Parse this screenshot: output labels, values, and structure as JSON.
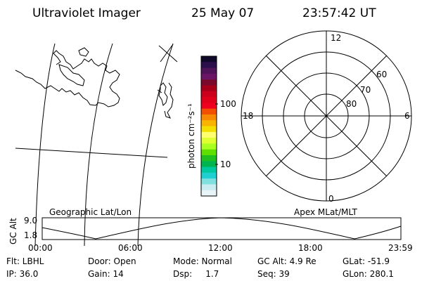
{
  "header": {
    "instrument": "Ultraviolet Imager",
    "date": "25 May 07",
    "time": "23:57:42 UT"
  },
  "colorbar": {
    "unit_label": "photon cm⁻²s⁻¹",
    "tick_labels": [
      "100",
      "10"
    ],
    "colors": [
      "#100828",
      "#2a0f4c",
      "#4e1457",
      "#6b1566",
      "#7a0a2c",
      "#a8001a",
      "#cc001a",
      "#e1001a",
      "#f0001e",
      "#f05000",
      "#f68a00",
      "#f8b400",
      "#f4e000",
      "#ffff70",
      "#e0ff30",
      "#a8ff20",
      "#60e000",
      "#20c020",
      "#00b450",
      "#00c8a0",
      "#20d0d0",
      "#80e0e0",
      "#c8ecf0",
      "#e8f4f8"
    ]
  },
  "polar_plot": {
    "mlt_labels": {
      "top": "12",
      "bottom": "0",
      "left": "18",
      "right": "6"
    },
    "lat_labels": [
      "60",
      "70",
      "80"
    ]
  },
  "timeline": {
    "left_label": "Geographic Lat/Lon",
    "right_label": "Apex MLat/MLT",
    "y_axis_label": "GC Alt",
    "y_ticks": [
      "9.0",
      "1.8"
    ],
    "x_ticks": [
      "00:00",
      "06:00",
      "12:00",
      "18:00",
      "23:59"
    ]
  },
  "info": {
    "row1": [
      "Flt: LBHL",
      "Door: Open",
      "Mode: Normal",
      "GC Alt: 4.9 Re",
      "GLat: -51.9"
    ],
    "row2": [
      "IP: 36.0",
      "Gain: 14",
      "Dsp:     1.7",
      "Seq: 39",
      "GLon: 280.1"
    ]
  }
}
